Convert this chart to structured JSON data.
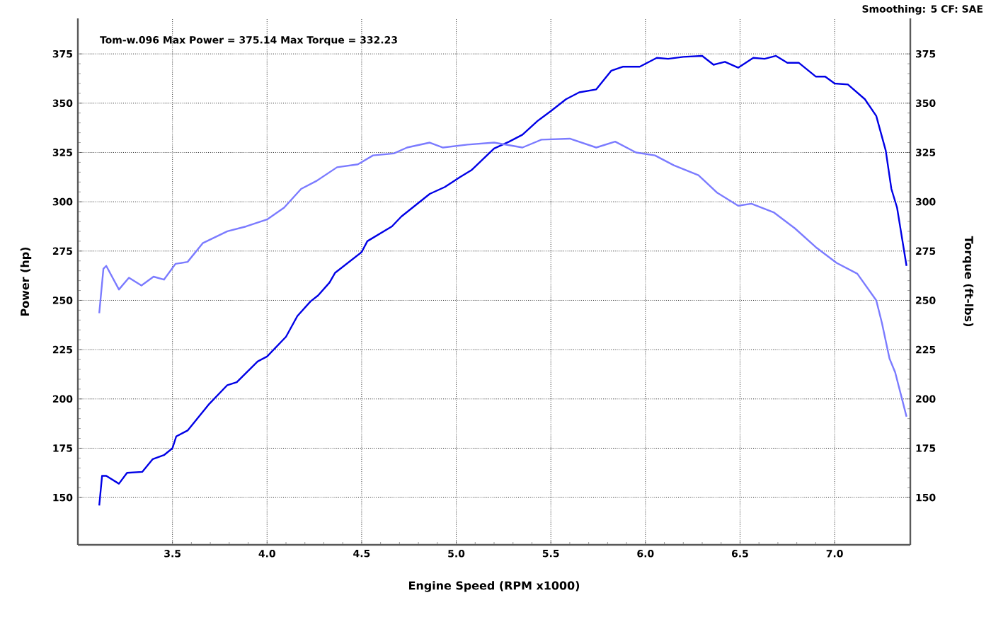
{
  "chart_data": {
    "type": "line",
    "xlabel": "Engine Speed (RPM x1000)",
    "ylabel": "Power (hp)",
    "y2label": "Torque (ft-lbs)",
    "annotations": [
      "Tom-w.096 Max Power = 375.14 Max Torque = 332.23",
      "Smoothing: 5  CF: SAE"
    ],
    "xlim": [
      3.0,
      7.4
    ],
    "xticks": [
      3.5,
      {
        "value": 4,
        "label": "4.0"
      },
      4.5,
      {
        "value": 5,
        "label": "5.0"
      },
      5.5,
      {
        "value": 6,
        "label": "6.0"
      },
      6.5,
      {
        "value": 7,
        "label": "7.0"
      }
    ],
    "ylim": [
      126,
      393
    ],
    "yticks": [
      150,
      175,
      200,
      225,
      250,
      275,
      300,
      325,
      350,
      375
    ],
    "y2lim": [
      126,
      393
    ],
    "y2ticks": [
      150,
      175,
      200,
      225,
      250,
      275,
      300,
      325,
      350,
      375
    ],
    "grid": true,
    "line_style": "solid",
    "series": [
      {
        "color": "#0000e6",
        "x": [
          3.113,
          3.128,
          3.15,
          3.217,
          3.26,
          3.34,
          3.396,
          3.455,
          3.5,
          3.52,
          3.58,
          3.69,
          3.79,
          3.84,
          3.95,
          4.0,
          4.1,
          4.16,
          4.23,
          4.27,
          4.33,
          4.36,
          4.5,
          4.53,
          4.66,
          4.71,
          4.86,
          4.94,
          5.02,
          5.08,
          5.2,
          5.28,
          5.35,
          5.43,
          5.5,
          5.58,
          5.65,
          5.74,
          5.82,
          5.88,
          5.97,
          6.06,
          6.12,
          6.2,
          6.3,
          6.36,
          6.42,
          6.49,
          6.57,
          6.63,
          6.69,
          6.75,
          6.81,
          6.9,
          6.95,
          7.0,
          7.07,
          7.16,
          7.22,
          7.27,
          7.3,
          7.33,
          7.38
        ],
        "values": [
          146,
          161,
          161,
          157,
          162.5,
          163,
          169.5,
          171.5,
          175,
          181,
          184,
          197,
          207,
          208.5,
          219,
          221.5,
          231.5,
          242,
          249.5,
          252.5,
          259,
          264,
          274.5,
          280,
          287.5,
          292.5,
          304,
          307.5,
          312.5,
          316,
          327,
          330.5,
          334,
          341,
          346,
          352,
          355.5,
          357,
          366.5,
          368.5,
          368.5,
          373,
          372.5,
          373.5,
          374,
          369.5,
          371,
          368,
          373,
          372.5,
          374,
          370.5,
          370.5,
          363.5,
          363.5,
          360,
          359.5,
          352,
          343.5,
          326,
          306.5,
          297,
          267.5
        ]
      },
      {
        "color": "#7b7bff",
        "axis": "y2",
        "x": [
          3.113,
          3.135,
          3.15,
          3.217,
          3.27,
          3.336,
          3.4,
          3.455,
          3.516,
          3.58,
          3.66,
          3.79,
          3.89,
          4.0,
          4.09,
          4.18,
          4.26,
          4.37,
          4.48,
          4.56,
          4.67,
          4.74,
          4.86,
          4.93,
          5.06,
          5.2,
          5.35,
          5.45,
          5.6,
          5.74,
          5.84,
          5.95,
          6.05,
          6.15,
          6.28,
          6.38,
          6.49,
          6.56,
          6.68,
          6.79,
          6.9,
          7.01,
          7.12,
          7.22,
          7.25,
          7.29,
          7.32,
          7.38
        ],
        "values": [
          243.5,
          266,
          267.5,
          255.5,
          261.5,
          257.5,
          262,
          260.5,
          268.5,
          269.5,
          279,
          285,
          287.5,
          291,
          297,
          306.5,
          310.5,
          317.5,
          319,
          323.5,
          324.5,
          327.5,
          330,
          327.5,
          329,
          330,
          327.5,
          331.5,
          332,
          327.5,
          330.5,
          325,
          323.5,
          318.5,
          313.5,
          304.5,
          298,
          299,
          294.5,
          286.5,
          277,
          269,
          263.5,
          250,
          238.5,
          220.5,
          213.5,
          191
        ]
      }
    ]
  }
}
